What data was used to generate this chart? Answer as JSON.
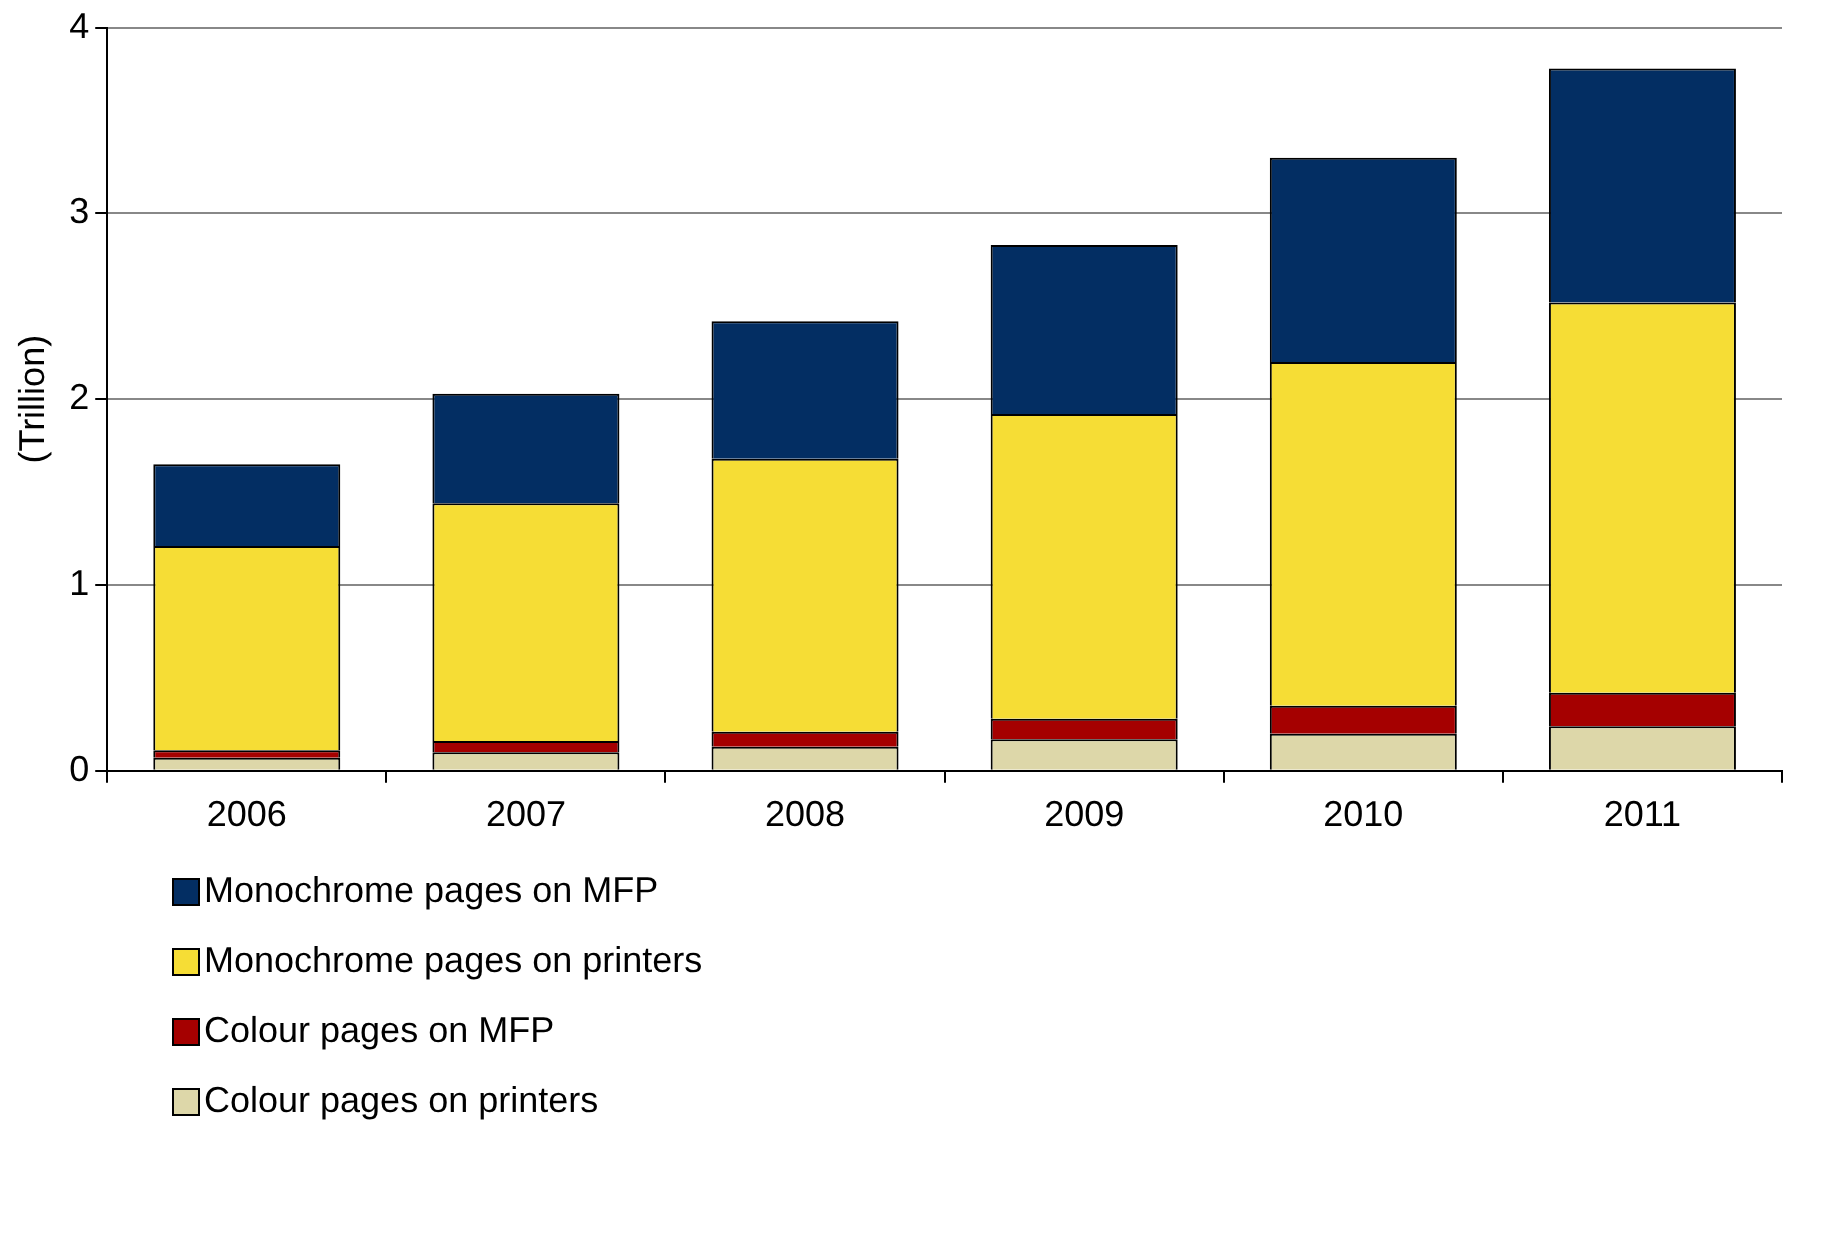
{
  "chart_data": {
    "type": "bar",
    "stacked": true,
    "ylabel": "(Trillion)",
    "categories": [
      "2006",
      "2007",
      "2008",
      "2009",
      "2010",
      "2011"
    ],
    "series": [
      {
        "name": "Colour pages on printers",
        "color": "#ddd7a9",
        "values": [
          0.07,
          0.1,
          0.13,
          0.17,
          0.2,
          0.24
        ]
      },
      {
        "name": "Colour pages on MFP",
        "color": "#a50000",
        "values": [
          0.04,
          0.06,
          0.08,
          0.11,
          0.15,
          0.18
        ]
      },
      {
        "name": "Monochrome pages on printers",
        "color": "#f6dd35",
        "values": [
          1.1,
          1.28,
          1.47,
          1.64,
          1.85,
          2.1
        ]
      },
      {
        "name": "Monochrome pages on MFP",
        "color": "#032e63",
        "values": [
          0.44,
          0.59,
          0.74,
          0.91,
          1.1,
          1.26
        ]
      }
    ],
    "ylim": [
      0,
      4
    ],
    "yticks": [
      0,
      1,
      2,
      3,
      4
    ],
    "grid": "y",
    "legend": "bottom"
  }
}
